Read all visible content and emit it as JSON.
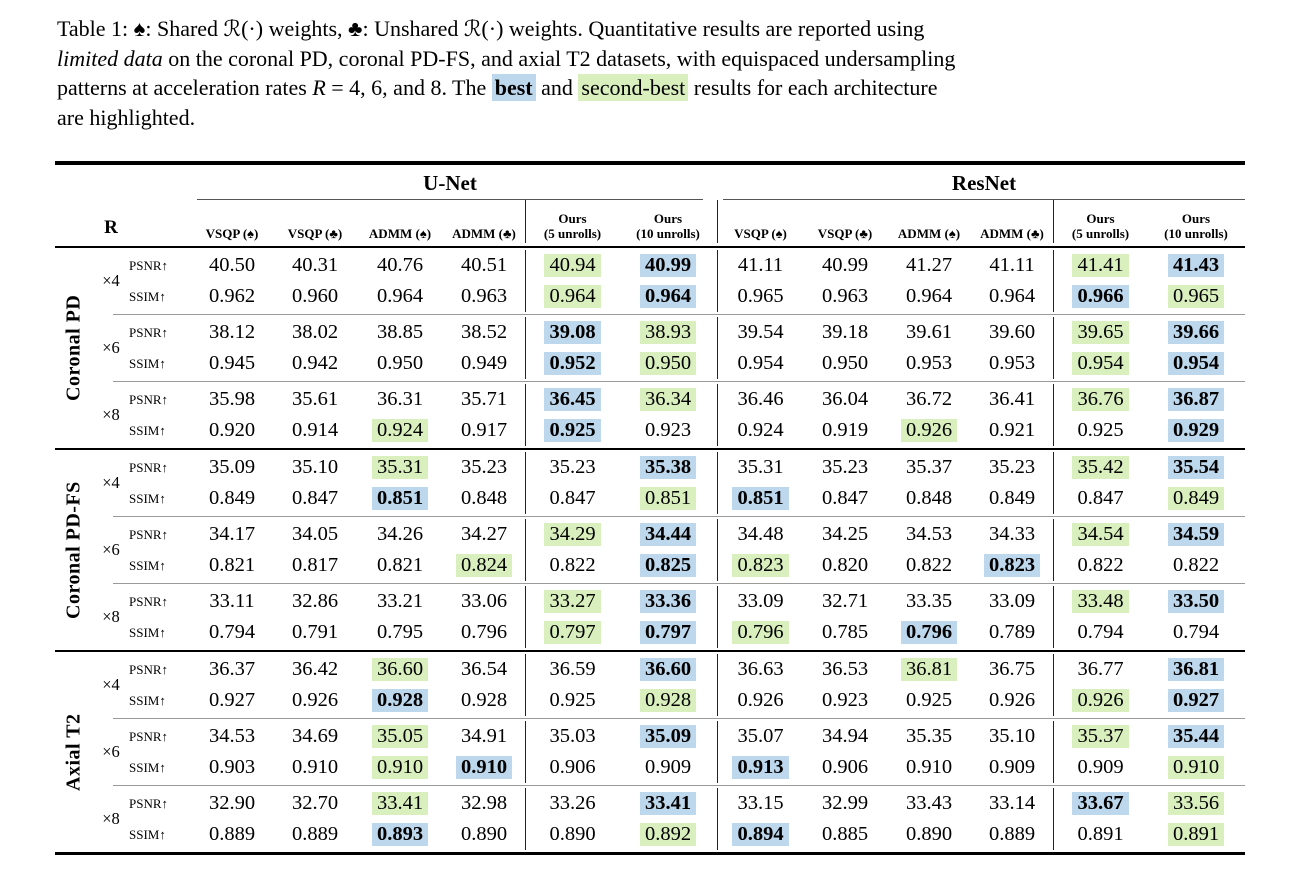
{
  "caption": {
    "line1": "Table 1: ♠: Shared ℛ(·) weights, ♣: Unshared ℛ(·) weights. Quantitative results are reported using",
    "line2_italic": "limited data",
    "line2_rest": " on the coronal PD, coronal PD-FS, and axial T2 datasets, with equispaced undersampling",
    "line3_pre": "patterns at acceleration rates ",
    "line3_R": "R",
    "line3_mid": " = 4, 6, and 8. The ",
    "line3_best": "best",
    "line3_and": " and ",
    "line3_second": "second-best",
    "line3_post": " results for each architecture",
    "line4": "are highlighted."
  },
  "colors": {
    "best_highlight": "#bdd7ec",
    "second_best_highlight": "#d9efbd"
  },
  "table": {
    "r_header": "R",
    "groups": [
      {
        "label": "U-Net"
      },
      {
        "label": "ResNet"
      }
    ],
    "columns": [
      {
        "l1": "VSQP (♠)"
      },
      {
        "l1": "VSQP (♣)"
      },
      {
        "l1": "ADMM (♠)"
      },
      {
        "l1": "ADMM (♣)"
      },
      {
        "l1": "Ours",
        "l2": "(5 unrolls)"
      },
      {
        "l1": "Ours",
        "l2": "(10 unrolls)"
      }
    ]
  },
  "labels": {
    "psnr": "PSNR↑",
    "ssim": "SSIM↑"
  },
  "datasets": [
    {
      "label": "Coronal PD",
      "rows": [
        {
          "rate": "×4",
          "psnr_v": [
            "40.50",
            "40.31",
            "40.76",
            "40.51",
            "40.94",
            "40.99",
            "41.11",
            "40.99",
            "41.27",
            "41.11",
            "41.41",
            "41.43"
          ],
          "psnr_h": [
            "",
            "",
            "",
            "",
            "g",
            "b",
            "",
            "",
            "",
            "",
            "g",
            "b"
          ],
          "ssim_v": [
            "0.962",
            "0.960",
            "0.964",
            "0.963",
            "0.964",
            "0.964",
            "0.965",
            "0.963",
            "0.964",
            "0.964",
            "0.966",
            "0.965"
          ],
          "ssim_h": [
            "",
            "",
            "",
            "",
            "g",
            "b",
            "",
            "",
            "",
            "",
            "b",
            "g"
          ]
        },
        {
          "rate": "×6",
          "psnr_v": [
            "38.12",
            "38.02",
            "38.85",
            "38.52",
            "39.08",
            "38.93",
            "39.54",
            "39.18",
            "39.61",
            "39.60",
            "39.65",
            "39.66"
          ],
          "psnr_h": [
            "",
            "",
            "",
            "",
            "b",
            "g",
            "",
            "",
            "",
            "",
            "g",
            "b"
          ],
          "ssim_v": [
            "0.945",
            "0.942",
            "0.950",
            "0.949",
            "0.952",
            "0.950",
            "0.954",
            "0.950",
            "0.953",
            "0.953",
            "0.954",
            "0.954"
          ],
          "ssim_h": [
            "",
            "",
            "",
            "",
            "b",
            "g",
            "",
            "",
            "",
            "",
            "g",
            "b"
          ]
        },
        {
          "rate": "×8",
          "psnr_v": [
            "35.98",
            "35.61",
            "36.31",
            "35.71",
            "36.45",
            "36.34",
            "36.46",
            "36.04",
            "36.72",
            "36.41",
            "36.76",
            "36.87"
          ],
          "psnr_h": [
            "",
            "",
            "",
            "",
            "b",
            "g",
            "",
            "",
            "",
            "",
            "g",
            "b"
          ],
          "ssim_v": [
            "0.920",
            "0.914",
            "0.924",
            "0.917",
            "0.925",
            "0.923",
            "0.924",
            "0.919",
            "0.926",
            "0.921",
            "0.925",
            "0.929"
          ],
          "ssim_h": [
            "",
            "",
            "g",
            "",
            "b",
            "",
            "",
            "",
            "g",
            "",
            "",
            "b"
          ]
        }
      ]
    },
    {
      "label": "Coronal PD-FS",
      "rows": [
        {
          "rate": "×4",
          "psnr_v": [
            "35.09",
            "35.10",
            "35.31",
            "35.23",
            "35.23",
            "35.38",
            "35.31",
            "35.23",
            "35.37",
            "35.23",
            "35.42",
            "35.54"
          ],
          "psnr_h": [
            "",
            "",
            "g",
            "",
            "",
            "b",
            "",
            "",
            "",
            "",
            "g",
            "b"
          ],
          "ssim_v": [
            "0.849",
            "0.847",
            "0.851",
            "0.848",
            "0.847",
            "0.851",
            "0.851",
            "0.847",
            "0.848",
            "0.849",
            "0.847",
            "0.849"
          ],
          "ssim_h": [
            "",
            "",
            "b",
            "",
            "",
            "g",
            "b",
            "",
            "",
            "",
            "",
            "g"
          ]
        },
        {
          "rate": "×6",
          "psnr_v": [
            "34.17",
            "34.05",
            "34.26",
            "34.27",
            "34.29",
            "34.44",
            "34.48",
            "34.25",
            "34.53",
            "34.33",
            "34.54",
            "34.59"
          ],
          "psnr_h": [
            "",
            "",
            "",
            "",
            "g",
            "b",
            "",
            "",
            "",
            "",
            "g",
            "b"
          ],
          "ssim_v": [
            "0.821",
            "0.817",
            "0.821",
            "0.824",
            "0.822",
            "0.825",
            "0.823",
            "0.820",
            "0.822",
            "0.823",
            "0.822",
            "0.822"
          ],
          "ssim_h": [
            "",
            "",
            "",
            "g",
            "",
            "b",
            "g",
            "",
            "",
            "b",
            "",
            ""
          ]
        },
        {
          "rate": "×8",
          "psnr_v": [
            "33.11",
            "32.86",
            "33.21",
            "33.06",
            "33.27",
            "33.36",
            "33.09",
            "32.71",
            "33.35",
            "33.09",
            "33.48",
            "33.50"
          ],
          "psnr_h": [
            "",
            "",
            "",
            "",
            "g",
            "b",
            "",
            "",
            "",
            "",
            "g",
            "b"
          ],
          "ssim_v": [
            "0.794",
            "0.791",
            "0.795",
            "0.796",
            "0.797",
            "0.797",
            "0.796",
            "0.785",
            "0.796",
            "0.789",
            "0.794",
            "0.794"
          ],
          "ssim_h": [
            "",
            "",
            "",
            "",
            "g",
            "b",
            "g",
            "",
            "b",
            "",
            "",
            ""
          ]
        }
      ]
    },
    {
      "label": "Axial T2",
      "rows": [
        {
          "rate": "×4",
          "psnr_v": [
            "36.37",
            "36.42",
            "36.60",
            "36.54",
            "36.59",
            "36.60",
            "36.63",
            "36.53",
            "36.81",
            "36.75",
            "36.77",
            "36.81"
          ],
          "psnr_h": [
            "",
            "",
            "g",
            "",
            "",
            "b",
            "",
            "",
            "g",
            "",
            "",
            "b"
          ],
          "ssim_v": [
            "0.927",
            "0.926",
            "0.928",
            "0.928",
            "0.925",
            "0.928",
            "0.926",
            "0.923",
            "0.925",
            "0.926",
            "0.926",
            "0.927"
          ],
          "ssim_h": [
            "",
            "",
            "b",
            "",
            "",
            "g",
            "",
            "",
            "",
            "",
            "g",
            "b"
          ]
        },
        {
          "rate": "×6",
          "psnr_v": [
            "34.53",
            "34.69",
            "35.05",
            "34.91",
            "35.03",
            "35.09",
            "35.07",
            "34.94",
            "35.35",
            "35.10",
            "35.37",
            "35.44"
          ],
          "psnr_h": [
            "",
            "",
            "g",
            "",
            "",
            "b",
            "",
            "",
            "",
            "",
            "g",
            "b"
          ],
          "ssim_v": [
            "0.903",
            "0.910",
            "0.910",
            "0.910",
            "0.906",
            "0.909",
            "0.913",
            "0.906",
            "0.910",
            "0.909",
            "0.909",
            "0.910"
          ],
          "ssim_h": [
            "",
            "",
            "g",
            "b",
            "",
            "",
            "b",
            "",
            "",
            "",
            "",
            "g"
          ]
        },
        {
          "rate": "×8",
          "psnr_v": [
            "32.90",
            "32.70",
            "33.41",
            "32.98",
            "33.26",
            "33.41",
            "33.15",
            "32.99",
            "33.43",
            "33.14",
            "33.67",
            "33.56"
          ],
          "psnr_h": [
            "",
            "",
            "g",
            "",
            "",
            "b",
            "",
            "",
            "",
            "",
            "b",
            "g"
          ],
          "ssim_v": [
            "0.889",
            "0.889",
            "0.893",
            "0.890",
            "0.890",
            "0.892",
            "0.894",
            "0.885",
            "0.890",
            "0.889",
            "0.891",
            "0.891"
          ],
          "ssim_h": [
            "",
            "",
            "b",
            "",
            "",
            "g",
            "b",
            "",
            "",
            "",
            "",
            "g"
          ]
        }
      ]
    }
  ]
}
